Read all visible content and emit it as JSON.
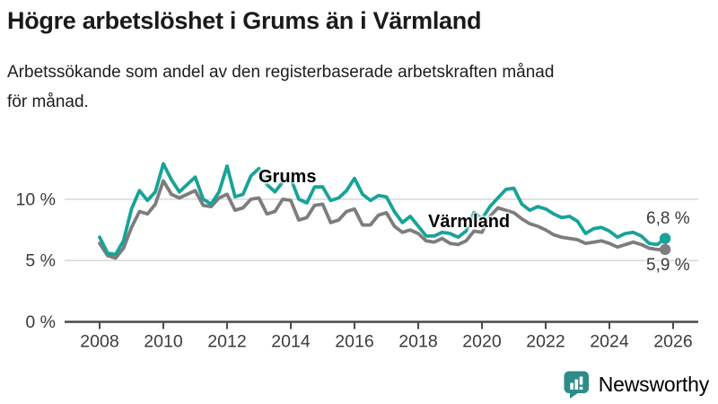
{
  "header": {
    "title": "Högre arbetslöshet i Grums än i Värmland",
    "subtitle": "Arbetssökande som andel av den registerbaserade arbetskraften månad för månad."
  },
  "colors": {
    "grums_line": "#17a398",
    "varmland_line": "#7d7d7d",
    "grid": "#d8d8d8",
    "axis": "#4a4a4a",
    "axis_text": "#3b3b3b",
    "brand_teal": "#2e8c87"
  },
  "chart_data": {
    "type": "line",
    "title": "Högre arbetslöshet i Grums än i Värmland",
    "ylabel": "",
    "xlabel": "",
    "y_unit": "%",
    "grid": "horizontal",
    "x_start": 2008.0,
    "x_step": 0.25,
    "ylim": [
      0,
      14
    ],
    "xlim": [
      2007.8,
      2026.8
    ],
    "y_ticks": [
      {
        "value": 0,
        "label": "0 %"
      },
      {
        "value": 5,
        "label": "5 %"
      },
      {
        "value": 10,
        "label": "10 %"
      }
    ],
    "x_ticks": [
      {
        "value": 2008,
        "label": "2008"
      },
      {
        "value": 2010,
        "label": "2010"
      },
      {
        "value": 2012,
        "label": "2012"
      },
      {
        "value": 2014,
        "label": "2014"
      },
      {
        "value": 2016,
        "label": "2016"
      },
      {
        "value": 2018,
        "label": "2018"
      },
      {
        "value": 2020,
        "label": "2020"
      },
      {
        "value": 2022,
        "label": "2022"
      },
      {
        "value": 2024,
        "label": "2024"
      },
      {
        "value": 2026,
        "label": "2026"
      }
    ],
    "series": [
      {
        "name": "Grums",
        "color": "#17a398",
        "values": [
          6.9,
          5.6,
          5.5,
          6.6,
          9.2,
          10.7,
          9.9,
          10.6,
          12.9,
          11.6,
          10.6,
          11.2,
          11.8,
          10.0,
          9.6,
          10.6,
          12.7,
          10.2,
          10.4,
          11.9,
          12.5,
          11.2,
          10.6,
          11.4,
          11.7,
          10.0,
          9.7,
          11.0,
          11.0,
          9.9,
          10.1,
          10.7,
          11.7,
          10.4,
          9.9,
          10.3,
          10.2,
          9.0,
          8.1,
          8.6,
          7.8,
          7.0,
          7.0,
          7.3,
          7.2,
          6.9,
          7.4,
          8.9,
          8.4,
          9.4,
          10.1,
          10.8,
          10.9,
          9.6,
          9.1,
          9.4,
          9.2,
          8.8,
          8.5,
          8.6,
          8.2,
          7.2,
          7.6,
          7.7,
          7.4,
          6.9,
          7.2,
          7.3,
          7.0,
          6.4,
          6.3,
          6.8
        ]
      },
      {
        "name": "Värmland",
        "color": "#7d7d7d",
        "values": [
          6.4,
          5.4,
          5.2,
          6.0,
          7.7,
          9.0,
          8.8,
          9.6,
          11.5,
          10.4,
          10.1,
          10.4,
          10.7,
          9.5,
          9.4,
          10.1,
          10.4,
          9.1,
          9.3,
          10.0,
          10.1,
          8.8,
          9.0,
          10.0,
          9.9,
          8.3,
          8.5,
          9.5,
          9.6,
          8.1,
          8.3,
          9.0,
          9.2,
          7.9,
          7.9,
          8.7,
          8.9,
          7.8,
          7.3,
          7.5,
          7.2,
          6.6,
          6.5,
          6.8,
          6.4,
          6.3,
          6.6,
          7.4,
          7.3,
          8.6,
          9.3,
          9.1,
          8.9,
          8.4,
          8.0,
          7.8,
          7.5,
          7.1,
          6.9,
          6.8,
          6.7,
          6.4,
          6.5,
          6.6,
          6.4,
          6.1,
          6.3,
          6.5,
          6.3,
          6.0,
          5.9,
          5.9
        ]
      }
    ],
    "end_labels": [
      "6,8 %",
      "5,9 %"
    ],
    "legend_position": "inline-line-labels"
  },
  "footer": {
    "brand": "Newsworthy"
  }
}
